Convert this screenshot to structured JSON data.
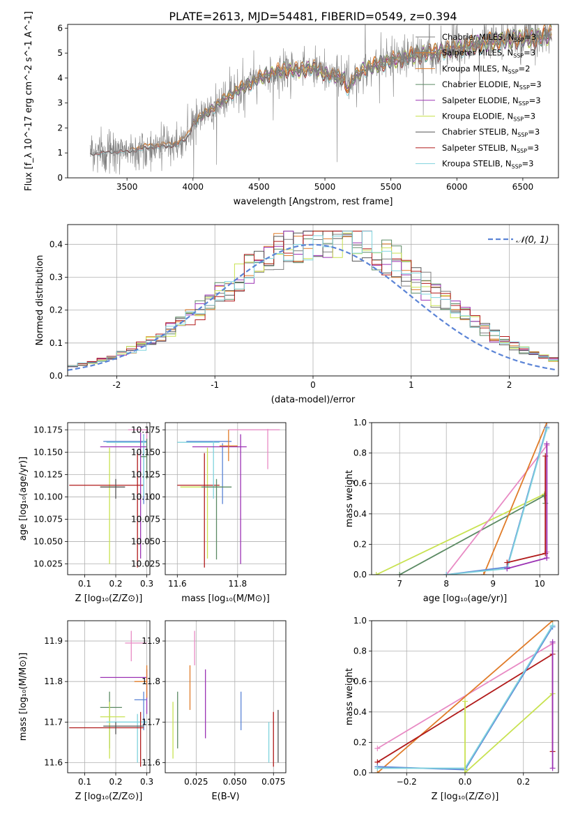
{
  "figure": {
    "title": "PLATE=2613, MJD=54481, FIBERID=0549, z=0.394"
  },
  "colors": {
    "chab_miles": "#7f7f7f",
    "salp_miles": "#e07b28",
    "kroupa_miles": "#e07b28",
    "chab_elodie": "#5b8a63",
    "salp_elodie": "#9b32b4",
    "kroupa_elodie": "#c8e250",
    "chab_stelib": "#555555",
    "salp_stelib": "#b11a1a",
    "kroupa_stelib": "#7fd3dd",
    "gauss": "#5b84d6",
    "pink": "#e88ac4",
    "blue": "#5b84d6",
    "dark": "#4a4a4a"
  },
  "chart_data": [
    {
      "id": "spectrum",
      "type": "line",
      "xlabel": "wavelength [Angstrom, rest frame]",
      "ylabel": "Flux [f_λ 10^-17 erg cm^-2 s^-1 A^-1]",
      "xlim": [
        3050,
        6770
      ],
      "ylim": [
        0,
        6.15
      ],
      "xticks": [
        3500,
        4000,
        4500,
        5000,
        5500,
        6000,
        6500
      ],
      "yticks": [
        0,
        1,
        2,
        3,
        4,
        5,
        6
      ],
      "legend_position": "top-right",
      "continuum_x": [
        3220,
        3300,
        3400,
        3500,
        3600,
        3700,
        3800,
        3900,
        3950,
        4000,
        4100,
        4200,
        4300,
        4400,
        4500,
        4600,
        4700,
        4800,
        4900,
        5000,
        5100,
        5200,
        5300,
        5400,
        5500,
        5600,
        5700,
        5800,
        5900,
        6000,
        6100,
        6200,
        6300,
        6400,
        6500,
        6600,
        6720
      ],
      "continuum_y": [
        1.0,
        1.05,
        1.1,
        1.1,
        1.2,
        1.3,
        1.3,
        1.45,
        1.6,
        2.2,
        2.6,
        3.0,
        3.4,
        3.7,
        4.0,
        4.2,
        4.35,
        4.3,
        4.45,
        4.2,
        4.05,
        3.9,
        4.4,
        4.55,
        4.7,
        4.8,
        4.95,
        5.0,
        5.1,
        5.2,
        5.3,
        5.4,
        5.5,
        5.55,
        5.6,
        5.6,
        5.75
      ],
      "legend": [
        {
          "label": "Chabrier MILES, N",
          "sub": "SSP",
          "tail": "=3",
          "color": "chab_miles"
        },
        {
          "label": "Salpeter MILES, N",
          "sub": "SSP",
          "tail": "=3",
          "color": "salp_miles"
        },
        {
          "label": "Kroupa MILES, N",
          "sub": "SSP",
          "tail": "=2",
          "color": "kroupa_miles"
        },
        {
          "label": "Chabrier ELODIE, N",
          "sub": "SSP",
          "tail": "=3",
          "color": "chab_elodie"
        },
        {
          "label": "Salpeter ELODIE, N",
          "sub": "SSP",
          "tail": "=3",
          "color": "salp_elodie"
        },
        {
          "label": "Kroupa ELODIE, N",
          "sub": "SSP",
          "tail": "=3",
          "color": "kroupa_elodie"
        },
        {
          "label": "Chabrier STELIB, N",
          "sub": "SSP",
          "tail": "=3",
          "color": "chab_stelib"
        },
        {
          "label": "Salpeter STELIB, N",
          "sub": "SSP",
          "tail": "=3",
          "color": "salp_stelib"
        },
        {
          "label": "Kroupa STELIB, N",
          "sub": "SSP",
          "tail": "=3",
          "color": "kroupa_stelib"
        }
      ]
    },
    {
      "id": "residuals",
      "type": "line",
      "xlabel": "(data-model)/error",
      "ylabel": "Normed distribution",
      "xlim": [
        -2.5,
        2.5
      ],
      "ylim": [
        0,
        0.46
      ],
      "xticks": [
        -2,
        -1,
        0,
        1,
        2
      ],
      "yticks": [
        0.0,
        0.1,
        0.2,
        0.3,
        0.4
      ],
      "legend_position": "top-right",
      "gauss_label": "𝒩(0, 1)",
      "bins": 50,
      "series_colors": [
        "chab_miles",
        "salp_miles",
        "chab_elodie",
        "salp_elodie",
        "kroupa_elodie",
        "chab_stelib",
        "salp_stelib",
        "kroupa_stelib"
      ]
    },
    {
      "id": "age_vs_Z",
      "type": "scatter",
      "xlabel": "Z [log₁₀(Z/Z⊙)]",
      "ylabel": "age  [log₁₀(age/yr)]",
      "xlim": [
        0.045,
        0.31
      ],
      "ylim": [
        10.013,
        10.183
      ],
      "xticks": [
        0.1,
        0.2,
        0.3
      ],
      "xtick_labels": [
        "0.1",
        "0.2",
        "0.3"
      ],
      "yticks": [
        10.025,
        10.05,
        10.075,
        10.1,
        10.125,
        10.15,
        10.175
      ],
      "yticks_labels": [
        "10.025",
        "10.050",
        "10.075",
        "10.100",
        "10.125",
        "10.150",
        "10.175"
      ],
      "points": [
        {
          "x": 0.18,
          "y": 10.111,
          "xlo": 0.15,
          "xhi": 0.21,
          "ylo": 10.025,
          "yhi": 10.155,
          "color": "kroupa_elodie"
        },
        {
          "x": 0.27,
          "y": 10.113,
          "xlo": 0.05,
          "xhi": 0.29,
          "ylo": 10.021,
          "yhi": 10.149,
          "color": "salp_stelib"
        },
        {
          "x": 0.29,
          "y": 10.162,
          "xlo": 0.16,
          "xhi": 0.3,
          "ylo": 10.092,
          "yhi": 10.17,
          "color": "blue"
        },
        {
          "x": 0.29,
          "y": 10.161,
          "xlo": 0.17,
          "xhi": 0.3,
          "ylo": 10.101,
          "yhi": 10.169,
          "color": "kroupa_stelib"
        },
        {
          "x": 0.3,
          "y": 10.175,
          "xlo": 0.24,
          "xhi": 0.3,
          "ylo": 10.131,
          "yhi": 10.176,
          "color": "pink"
        },
        {
          "x": 0.28,
          "y": 10.156,
          "xlo": 0.15,
          "xhi": 0.3,
          "ylo": 10.031,
          "yhi": 10.172,
          "color": "salp_elodie"
        },
        {
          "x": 0.3,
          "y": 10.145,
          "xlo": 0.28,
          "xhi": 0.3,
          "ylo": 10.12,
          "yhi": 10.165,
          "color": "chab_elodie"
        },
        {
          "x": 0.2,
          "y": 10.111,
          "xlo": 0.15,
          "xhi": 0.23,
          "ylo": 10.098,
          "yhi": 10.12,
          "color": "chab_stelib"
        }
      ]
    },
    {
      "id": "age_vs_mass",
      "type": "scatter",
      "xlabel": "mass [log₁₀(M/M⊙)]",
      "ylabel": "",
      "xlim": [
        11.56,
        11.96
      ],
      "ylim": [
        10.013,
        10.183
      ],
      "xticks": [
        11.6,
        11.8
      ],
      "xtick_labels": [
        "11.6",
        "11.8"
      ],
      "yticks": [
        10.025,
        10.05,
        10.075,
        10.1,
        10.125,
        10.15,
        10.175
      ],
      "yticks_labels": [
        "10.025",
        "10.050",
        "10.075",
        "10.100",
        "10.125",
        "10.150",
        "10.175"
      ],
      "points": [
        {
          "x": 11.7,
          "y": 10.111,
          "xlo": 11.61,
          "xhi": 11.75,
          "ylo": 10.031,
          "yhi": 10.155,
          "color": "kroupa_elodie"
        },
        {
          "x": 11.69,
          "y": 10.113,
          "xlo": 11.6,
          "xhi": 11.74,
          "ylo": 10.021,
          "yhi": 10.149,
          "color": "salp_stelib"
        },
        {
          "x": 11.75,
          "y": 10.162,
          "xlo": 11.63,
          "xhi": 11.78,
          "ylo": 10.092,
          "yhi": 10.16,
          "color": "blue"
        },
        {
          "x": 11.72,
          "y": 10.161,
          "xlo": 11.6,
          "xhi": 11.74,
          "ylo": 10.098,
          "yhi": 10.162,
          "color": "kroupa_stelib"
        },
        {
          "x": 11.9,
          "y": 10.175,
          "xlo": 11.77,
          "xhi": 11.94,
          "ylo": 10.131,
          "yhi": 10.176,
          "color": "pink"
        },
        {
          "x": 11.81,
          "y": 10.156,
          "xlo": 11.65,
          "xhi": 11.83,
          "ylo": 10.025,
          "yhi": 10.17,
          "color": "salp_elodie"
        },
        {
          "x": 11.73,
          "y": 10.111,
          "xlo": 11.68,
          "xhi": 11.78,
          "ylo": 10.03,
          "yhi": 10.12,
          "color": "chab_elodie"
        },
        {
          "x": 11.77,
          "y": 10.157,
          "xlo": 11.74,
          "xhi": 11.8,
          "ylo": 10.14,
          "yhi": 10.175,
          "color": "salp_miles"
        }
      ]
    },
    {
      "id": "massweight_vs_age",
      "type": "line",
      "xlabel": "age  [log₁₀(age/yr)]",
      "ylabel": "mass weight",
      "xlim": [
        6.4,
        10.4
      ],
      "ylim": [
        0,
        1.0
      ],
      "xticks": [
        7,
        8,
        9,
        10
      ],
      "xtick_labels": [
        "7",
        "8",
        "9",
        "10"
      ],
      "yticks": [
        0.0,
        0.2,
        0.4,
        0.6,
        0.8,
        1.0
      ],
      "yticks_labels": [
        "0.0",
        "0.2",
        "0.4",
        "0.6",
        "0.8",
        "1.0"
      ],
      "lines": [
        {
          "x": [
            6.5,
            10.1,
            10.12
          ],
          "y": [
            0.0,
            0.53,
            0.47
          ],
          "color": "kroupa_elodie"
        },
        {
          "x": [
            7.0,
            10.1,
            10.12
          ],
          "y": [
            0.0,
            0.52,
            0.47
          ],
          "color": "chab_elodie"
        },
        {
          "x": [
            8.0,
            10.15,
            10.15
          ],
          "y": [
            0.0,
            0.85,
            0.15
          ],
          "color": "pink"
        },
        {
          "x": [
            8.8,
            10.15
          ],
          "y": [
            0.0,
            1.0
          ],
          "color": "salp_miles"
        },
        {
          "x": [
            8.0,
            9.3,
            10.15
          ],
          "y": [
            0.0,
            0.05,
            0.97
          ],
          "color": "blue"
        },
        {
          "x": [
            8.0,
            9.3,
            10.15
          ],
          "y": [
            0.0,
            0.04,
            0.96
          ],
          "color": "kroupa_stelib"
        },
        {
          "x": [
            9.3,
            10.12,
            10.12
          ],
          "y": [
            0.08,
            0.14,
            0.78
          ],
          "color": "salp_stelib"
        },
        {
          "x": [
            9.3,
            10.15,
            10.15
          ],
          "y": [
            0.04,
            0.11,
            0.86
          ],
          "color": "salp_elodie"
        }
      ]
    },
    {
      "id": "mass_vs_Z",
      "type": "scatter",
      "xlabel": "Z [log₁₀(Z/Z⊙)]",
      "ylabel": "mass [log₁₀(M/M⊙)]",
      "xlim": [
        0.045,
        0.31
      ],
      "ylim": [
        11.575,
        11.95
      ],
      "xticks": [
        0.1,
        0.2,
        0.3
      ],
      "xtick_labels": [
        "0.1",
        "0.2",
        "0.3"
      ],
      "yticks": [
        11.6,
        11.7,
        11.8,
        11.9
      ],
      "yticks_labels": [
        "11.6",
        "11.7",
        "11.8",
        "11.9"
      ],
      "points": [
        {
          "x": 0.25,
          "y": 11.895,
          "xlo": 0.23,
          "xhi": 0.3,
          "ylo": 11.85,
          "yhi": 11.925,
          "color": "pink"
        },
        {
          "x": 0.3,
          "y": 11.81,
          "xlo": 0.15,
          "xhi": 0.3,
          "ylo": 11.72,
          "yhi": 11.83,
          "color": "salp_elodie"
        },
        {
          "x": 0.3,
          "y": 11.8,
          "xlo": 0.26,
          "xhi": 0.3,
          "ylo": 11.76,
          "yhi": 11.84,
          "color": "salp_miles"
        },
        {
          "x": 0.29,
          "y": 11.755,
          "xlo": 0.26,
          "xhi": 0.3,
          "ylo": 11.68,
          "yhi": 11.775,
          "color": "blue"
        },
        {
          "x": 0.18,
          "y": 11.736,
          "xlo": 0.15,
          "xhi": 0.22,
          "ylo": 11.635,
          "yhi": 11.775,
          "color": "chab_elodie"
        },
        {
          "x": 0.18,
          "y": 11.713,
          "xlo": 0.15,
          "xhi": 0.23,
          "ylo": 11.61,
          "yhi": 11.75,
          "color": "kroupa_elodie"
        },
        {
          "x": 0.27,
          "y": 11.7,
          "xlo": 0.17,
          "xhi": 0.3,
          "ylo": 11.6,
          "yhi": 11.72,
          "color": "kroupa_stelib"
        },
        {
          "x": 0.28,
          "y": 11.686,
          "xlo": 0.05,
          "xhi": 0.29,
          "ylo": 11.59,
          "yhi": 11.725,
          "color": "salp_stelib"
        },
        {
          "x": 0.2,
          "y": 11.69,
          "xlo": 0.16,
          "xhi": 0.29,
          "ylo": 11.67,
          "yhi": 11.7,
          "color": "chab_stelib"
        }
      ]
    },
    {
      "id": "mass_vs_ebv",
      "type": "scatter",
      "xlabel": "E(B-V)",
      "ylabel": "",
      "xlim": [
        0.005,
        0.083
      ],
      "ylim": [
        11.575,
        11.95
      ],
      "xticks": [
        0.025,
        0.05,
        0.075
      ],
      "xtick_labels": [
        "0.025",
        "0.050",
        "0.075"
      ],
      "yticks": [
        11.6,
        11.7,
        11.8,
        11.9
      ],
      "yticks_labels": [
        "11.6",
        "11.7",
        "11.8",
        "11.9"
      ],
      "points": [
        {
          "x": 0.01,
          "y": 11.68,
          "xlo": 0.01,
          "xhi": 0.01,
          "ylo": 11.61,
          "yhi": 11.75,
          "color": "kroupa_elodie"
        },
        {
          "x": 0.013,
          "y": 11.705,
          "xlo": 0.013,
          "xhi": 0.013,
          "ylo": 11.635,
          "yhi": 11.775,
          "color": "chab_elodie"
        },
        {
          "x": 0.021,
          "y": 11.785,
          "xlo": 0.021,
          "xhi": 0.021,
          "ylo": 11.73,
          "yhi": 11.84,
          "color": "salp_miles"
        },
        {
          "x": 0.024,
          "y": 11.88,
          "xlo": 0.024,
          "xhi": 0.024,
          "ylo": 11.84,
          "yhi": 11.925,
          "color": "pink"
        },
        {
          "x": 0.031,
          "y": 11.745,
          "xlo": 0.031,
          "xhi": 0.031,
          "ylo": 11.66,
          "yhi": 11.83,
          "color": "salp_elodie"
        },
        {
          "x": 0.054,
          "y": 11.73,
          "xlo": 0.054,
          "xhi": 0.054,
          "ylo": 11.68,
          "yhi": 11.775,
          "color": "blue"
        },
        {
          "x": 0.072,
          "y": 11.65,
          "xlo": 0.072,
          "xhi": 0.072,
          "ylo": 11.6,
          "yhi": 11.7,
          "color": "kroupa_stelib"
        },
        {
          "x": 0.075,
          "y": 11.66,
          "xlo": 0.075,
          "xhi": 0.075,
          "ylo": 11.59,
          "yhi": 11.725,
          "color": "salp_stelib"
        },
        {
          "x": 0.078,
          "y": 11.665,
          "xlo": 0.078,
          "xhi": 0.078,
          "ylo": 11.6,
          "yhi": 11.73,
          "color": "chab_stelib"
        }
      ]
    },
    {
      "id": "massweight_vs_Z",
      "type": "line",
      "xlabel": "Z [log₁₀(Z/Z⊙)]",
      "ylabel": "mass weight",
      "xlim": [
        -0.32,
        0.32
      ],
      "ylim": [
        0,
        1.0
      ],
      "xticks": [
        -0.2,
        0.0,
        0.2
      ],
      "xtick_labels": [
        "−0.2",
        "0.0",
        "0.2"
      ],
      "yticks": [
        0.0,
        0.2,
        0.4,
        0.6,
        0.8,
        1.0
      ],
      "yticks_labels": [
        "0.0",
        "0.2",
        "0.4",
        "0.6",
        "0.8",
        "1.0"
      ],
      "lines": [
        {
          "x": [
            -0.3,
            0.3
          ],
          "y": [
            0.16,
            0.85
          ],
          "color": "pink"
        },
        {
          "x": [
            -0.3,
            0.3
          ],
          "y": [
            0.0,
            1.0
          ],
          "color": "salp_miles"
        },
        {
          "x": [
            -0.3,
            0.3,
            0.3
          ],
          "y": [
            0.07,
            0.78,
            0.14
          ],
          "color": "salp_stelib"
        },
        {
          "x": [
            -0.3,
            0.0,
            0.3
          ],
          "y": [
            0.04,
            0.02,
            0.96
          ],
          "color": "blue"
        },
        {
          "x": [
            -0.3,
            0.0,
            0.3
          ],
          "y": [
            0.03,
            0.03,
            0.97
          ],
          "color": "kroupa_stelib"
        },
        {
          "x": [
            0.0,
            0.0,
            0.3
          ],
          "y": [
            0.47,
            0.0,
            0.52
          ],
          "color": "kroupa_elodie"
        },
        {
          "x": [
            0.3,
            0.3
          ],
          "y": [
            0.03,
            0.86
          ],
          "color": "salp_elodie"
        }
      ]
    }
  ]
}
